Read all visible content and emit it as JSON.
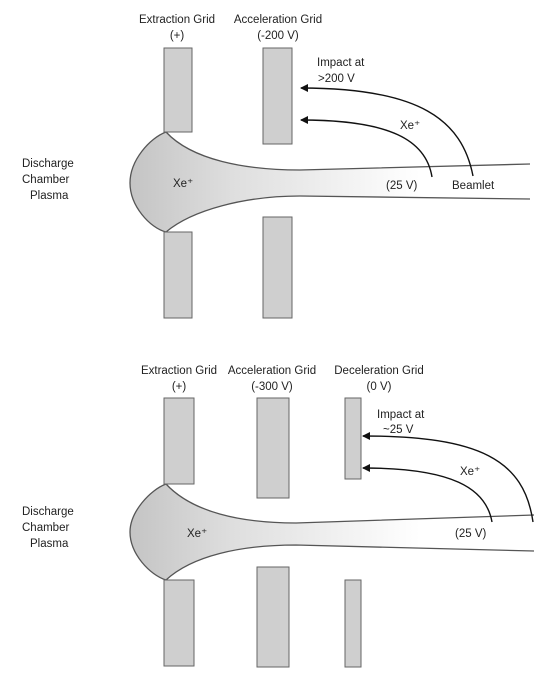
{
  "top": {
    "extraction_label": "Extraction Grid",
    "extraction_voltage": "(+)",
    "acceleration_label": "Acceleration Grid",
    "acceleration_voltage": "(-200 V)",
    "plasma_line1": "Discharge",
    "plasma_line2": "Chamber",
    "plasma_line3": "Plasma",
    "ion_label": "Xe⁺",
    "impact_line1": "Impact at",
    "impact_line2": ">200 V",
    "backstream_ion_label": "Xe⁺",
    "origin_voltage": "(25 V)",
    "beamlet_label": "Beamlet"
  },
  "bottom": {
    "extraction_label": "Extraction Grid",
    "extraction_voltage": "(+)",
    "acceleration_label": "Acceleration Grid",
    "acceleration_voltage": "(-300 V)",
    "deceleration_label": "Deceleration Grid",
    "deceleration_voltage": "(0 V)",
    "plasma_line1": "Discharge",
    "plasma_line2": "Chamber",
    "plasma_line3": "Plasma",
    "ion_label": "Xe⁺",
    "impact_line1": "Impact at",
    "impact_line2": "~25 V",
    "backstream_ion_label": "Xe⁺",
    "origin_voltage": "(25 V)"
  },
  "colors": {
    "grid_fill": "#cfcfcf",
    "grid_stroke": "#666666",
    "plasma_gradient_start": "#c4c4c4",
    "plasma_gradient_end": "#ffffff",
    "trajectory": "#111111"
  }
}
